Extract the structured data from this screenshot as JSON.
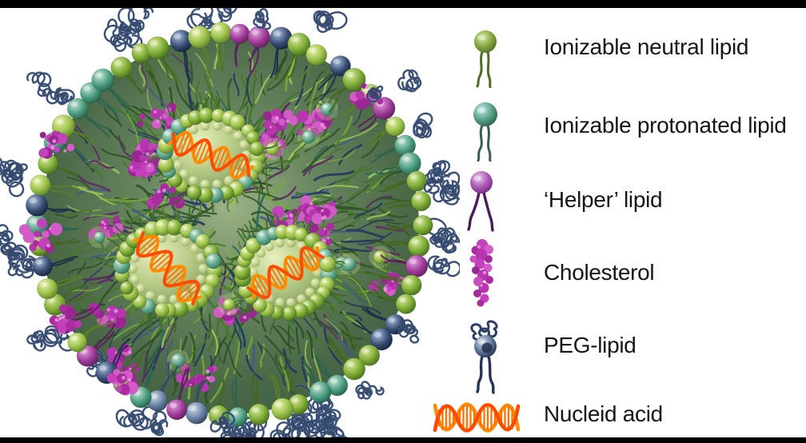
{
  "figure": {
    "background": "#ffffff",
    "bar_color": "#000000",
    "description_labels_only": true
  },
  "legend": {
    "text_color": "#161616",
    "items": [
      {
        "label": "Ionizable neutral lipid",
        "icon": "ionizable-neutral-lipid-icon"
      },
      {
        "label": "Ionizable protonated lipid",
        "icon": "ionizable-protonated-lipid-icon"
      },
      {
        "label": "‘Helper’ lipid",
        "icon": "helper-lipid-icon"
      },
      {
        "label": "Cholesterol",
        "icon": "cholesterol-icon"
      },
      {
        "label": "PEG-lipid",
        "icon": "peg-lipid-icon"
      },
      {
        "label": "Nucleid acid",
        "icon": "nucleic-acid-icon"
      }
    ]
  },
  "illustration": {
    "sphere_gradients": {
      "green": [
        "#d9e89b",
        "#7fae36",
        "#41641b"
      ],
      "lime": [
        "#eaf2b2",
        "#9cc249",
        "#557a24"
      ],
      "teal": [
        "#c2e5d3",
        "#4d9e82",
        "#1d5a43"
      ],
      "purple": [
        "#e4a3de",
        "#a23c9c",
        "#571a54"
      ],
      "navy": [
        "#a9bdd9",
        "#3a5077",
        "#111c35"
      ],
      "steel": [
        "#cfdae7",
        "#6a84a5",
        "#2a3b54"
      ],
      "pale": [
        "#eef4cc",
        "#c2d28b",
        "#8fa45e"
      ],
      "vteal": [
        "#cdeadd",
        "#63a98d",
        "#2c6a52"
      ],
      "vfill": [
        "#e8f0c0",
        "#b4c883",
        "#7c985b"
      ]
    },
    "bg": [
      "#9cb286",
      "#67855e",
      "#4a6847",
      "#3b553d"
    ],
    "hair_colors": [
      [
        "#2e5226",
        26
      ],
      [
        "#47742c",
        20
      ],
      [
        "#74a838",
        14
      ],
      [
        "#9cc355",
        7
      ],
      [
        "#24375c",
        12
      ],
      [
        "#41598a",
        5
      ],
      [
        "#5f2a66",
        7
      ],
      [
        "#2e6b58",
        6
      ],
      [
        "#86b457",
        3
      ]
    ],
    "tail_colors": {
      "green": "#45671e",
      "lime": "#5a7f28",
      "teal": "#2b6350",
      "purple": "#5b2060",
      "navy": "#1d2c4d",
      "steel": "#35486a"
    },
    "tangle": {
      "main": "#2f4569",
      "light": "#8ba0c2"
    },
    "cholesterol": [
      "#c341ba",
      "#ab2ba1",
      "#d45cc8",
      "#b935b0",
      "#9a2791"
    ],
    "cholesterol_highlight": "#eb9be0",
    "helix": {
      "strand_a": "#ff4b00",
      "strand_b": "#ff8f00",
      "rung": "#ff7300"
    }
  }
}
